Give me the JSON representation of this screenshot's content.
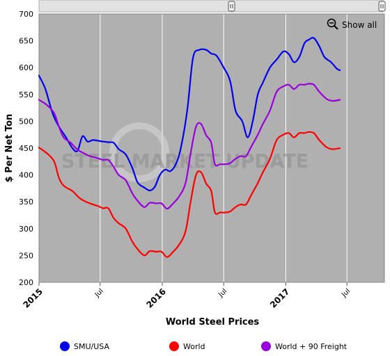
{
  "chart_data": {
    "type": "line",
    "title": "",
    "xlabel": "World Steel Prices",
    "ylabel": "$ Per Net Ton",
    "ylim": [
      200,
      700
    ],
    "yticks": [
      200,
      250,
      300,
      350,
      400,
      450,
      500,
      550,
      600,
      650,
      700
    ],
    "xlim": [
      "2015-01-01",
      "2017-10-20"
    ],
    "xticks": [
      {
        "date": "2015-01-01",
        "label": "2015",
        "major": true
      },
      {
        "date": "2015-07-01",
        "label": "Jul",
        "major": false
      },
      {
        "date": "2016-01-01",
        "label": "2016",
        "major": true
      },
      {
        "date": "2016-07-01",
        "label": "Jul",
        "major": false
      },
      {
        "date": "2017-01-01",
        "label": "2017",
        "major": true
      },
      {
        "date": "2017-07-01",
        "label": "Jul",
        "major": false
      }
    ],
    "grid": "vertical",
    "legend_position": "bottom",
    "watermark": "STEEL MARKET UPDATE",
    "show_all_label": "Show all",
    "series": [
      {
        "name": "SMU/USA",
        "color": "#0000ee",
        "points": [
          [
            "2015-01-01",
            585
          ],
          [
            "2015-01-20",
            560
          ],
          [
            "2015-02-10",
            515
          ],
          [
            "2015-03-01",
            490
          ],
          [
            "2015-03-20",
            472
          ],
          [
            "2015-04-10",
            450
          ],
          [
            "2015-04-25",
            445
          ],
          [
            "2015-05-10",
            472
          ],
          [
            "2015-05-25",
            462
          ],
          [
            "2015-06-10",
            465
          ],
          [
            "2015-07-01",
            463
          ],
          [
            "2015-07-25",
            461
          ],
          [
            "2015-08-10",
            460
          ],
          [
            "2015-08-25",
            448
          ],
          [
            "2015-09-15",
            438
          ],
          [
            "2015-10-05",
            412
          ],
          [
            "2015-10-20",
            386
          ],
          [
            "2015-11-10",
            376
          ],
          [
            "2015-11-25",
            371
          ],
          [
            "2015-12-10",
            378
          ],
          [
            "2015-12-25",
            400
          ],
          [
            "2016-01-10",
            410
          ],
          [
            "2016-01-25",
            407
          ],
          [
            "2016-02-10",
            420
          ],
          [
            "2016-02-25",
            450
          ],
          [
            "2016-03-15",
            520
          ],
          [
            "2016-04-01",
            618
          ],
          [
            "2016-04-20",
            633
          ],
          [
            "2016-05-10",
            633
          ],
          [
            "2016-05-25",
            626
          ],
          [
            "2016-06-10",
            622
          ],
          [
            "2016-07-01",
            600
          ],
          [
            "2016-07-20",
            575
          ],
          [
            "2016-08-05",
            520
          ],
          [
            "2016-08-25",
            500
          ],
          [
            "2016-09-10",
            470
          ],
          [
            "2016-09-25",
            500
          ],
          [
            "2016-10-10",
            550
          ],
          [
            "2016-10-25",
            572
          ],
          [
            "2016-11-15",
            600
          ],
          [
            "2016-12-05",
            615
          ],
          [
            "2016-12-25",
            630
          ],
          [
            "2017-01-10",
            625
          ],
          [
            "2017-01-25",
            610
          ],
          [
            "2017-02-10",
            620
          ],
          [
            "2017-02-25",
            645
          ],
          [
            "2017-03-10",
            652
          ],
          [
            "2017-03-25",
            655
          ],
          [
            "2017-04-10",
            640
          ],
          [
            "2017-04-25",
            620
          ],
          [
            "2017-05-15",
            610
          ],
          [
            "2017-06-01",
            598
          ],
          [
            "2017-06-10",
            595
          ]
        ]
      },
      {
        "name": "World",
        "color": "#ff0000",
        "points": [
          [
            "2015-01-01",
            451
          ],
          [
            "2015-01-25",
            440
          ],
          [
            "2015-02-15",
            425
          ],
          [
            "2015-03-01",
            395
          ],
          [
            "2015-03-15",
            380
          ],
          [
            "2015-04-10",
            370
          ],
          [
            "2015-05-01",
            357
          ],
          [
            "2015-05-20",
            350
          ],
          [
            "2015-06-10",
            345
          ],
          [
            "2015-06-25",
            342
          ],
          [
            "2015-07-10",
            338
          ],
          [
            "2015-07-25",
            338
          ],
          [
            "2015-08-10",
            320
          ],
          [
            "2015-08-25",
            310
          ],
          [
            "2015-09-15",
            300
          ],
          [
            "2015-10-05",
            275
          ],
          [
            "2015-10-25",
            258
          ],
          [
            "2015-11-10",
            250
          ],
          [
            "2015-11-25",
            258
          ],
          [
            "2015-12-15",
            257
          ],
          [
            "2015-12-30",
            257
          ],
          [
            "2016-01-15",
            247
          ],
          [
            "2016-02-01",
            256
          ],
          [
            "2016-02-20",
            270
          ],
          [
            "2016-03-10",
            295
          ],
          [
            "2016-03-25",
            350
          ],
          [
            "2016-04-10",
            400
          ],
          [
            "2016-04-25",
            405
          ],
          [
            "2016-05-10",
            384
          ],
          [
            "2016-05-25",
            370
          ],
          [
            "2016-06-05",
            330
          ],
          [
            "2016-06-20",
            330
          ],
          [
            "2016-07-05",
            330
          ],
          [
            "2016-07-20",
            332
          ],
          [
            "2016-08-05",
            340
          ],
          [
            "2016-08-20",
            345
          ],
          [
            "2016-09-05",
            345
          ],
          [
            "2016-09-20",
            362
          ],
          [
            "2016-10-10",
            385
          ],
          [
            "2016-10-25",
            405
          ],
          [
            "2016-11-15",
            430
          ],
          [
            "2016-12-05",
            465
          ],
          [
            "2016-12-25",
            475
          ],
          [
            "2017-01-10",
            478
          ],
          [
            "2017-01-25",
            470
          ],
          [
            "2017-02-10",
            478
          ],
          [
            "2017-02-25",
            478
          ],
          [
            "2017-03-10",
            480
          ],
          [
            "2017-03-25",
            478
          ],
          [
            "2017-04-10",
            465
          ],
          [
            "2017-05-01",
            452
          ],
          [
            "2017-05-20",
            448
          ],
          [
            "2017-06-10",
            450
          ]
        ]
      },
      {
        "name": "World + 90 Freight",
        "color": "#9900dd",
        "points": [
          [
            "2015-01-01",
            540
          ],
          [
            "2015-01-25",
            530
          ],
          [
            "2015-02-15",
            515
          ],
          [
            "2015-03-01",
            490
          ],
          [
            "2015-03-15",
            470
          ],
          [
            "2015-04-05",
            460
          ],
          [
            "2015-04-25",
            447
          ],
          [
            "2015-05-15",
            440
          ],
          [
            "2015-06-01",
            435
          ],
          [
            "2015-06-20",
            432
          ],
          [
            "2015-07-10",
            428
          ],
          [
            "2015-07-25",
            428
          ],
          [
            "2015-08-10",
            415
          ],
          [
            "2015-08-25",
            400
          ],
          [
            "2015-09-15",
            390
          ],
          [
            "2015-10-05",
            365
          ],
          [
            "2015-10-25",
            348
          ],
          [
            "2015-11-10",
            340
          ],
          [
            "2015-11-25",
            348
          ],
          [
            "2015-12-15",
            347
          ],
          [
            "2015-12-30",
            347
          ],
          [
            "2016-01-15",
            337
          ],
          [
            "2016-02-01",
            346
          ],
          [
            "2016-02-20",
            360
          ],
          [
            "2016-03-10",
            385
          ],
          [
            "2016-03-25",
            440
          ],
          [
            "2016-04-10",
            490
          ],
          [
            "2016-04-25",
            495
          ],
          [
            "2016-05-10",
            474
          ],
          [
            "2016-05-25",
            460
          ],
          [
            "2016-06-05",
            420
          ],
          [
            "2016-06-20",
            420
          ],
          [
            "2016-07-05",
            420
          ],
          [
            "2016-07-20",
            422
          ],
          [
            "2016-08-05",
            430
          ],
          [
            "2016-08-20",
            435
          ],
          [
            "2016-09-05",
            435
          ],
          [
            "2016-09-20",
            452
          ],
          [
            "2016-10-10",
            475
          ],
          [
            "2016-10-25",
            495
          ],
          [
            "2016-11-15",
            520
          ],
          [
            "2016-12-05",
            555
          ],
          [
            "2016-12-25",
            565
          ],
          [
            "2017-01-10",
            568
          ],
          [
            "2017-01-25",
            560
          ],
          [
            "2017-02-10",
            568
          ],
          [
            "2017-02-25",
            568
          ],
          [
            "2017-03-10",
            570
          ],
          [
            "2017-03-25",
            568
          ],
          [
            "2017-04-10",
            555
          ],
          [
            "2017-05-01",
            542
          ],
          [
            "2017-05-20",
            538
          ],
          [
            "2017-06-10",
            540
          ]
        ]
      }
    ]
  }
}
